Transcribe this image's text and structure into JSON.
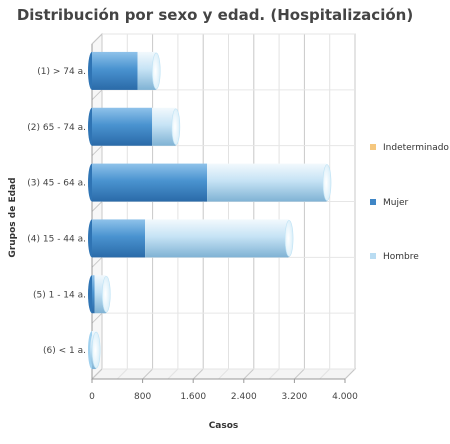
{
  "chart_data": {
    "type": "bar",
    "orientation": "horizontal",
    "stacked": true,
    "style": "3d-cylinder",
    "title": "Distribución por sexo y edad. (Hospitalización)",
    "xlabel": "Casos",
    "ylabel": "Grupos de Edad",
    "categories": [
      "(1) > 74 a.",
      "(2) 65 - 74 a.",
      "(3) 45 - 64 a.",
      "(4) 15 - 44 a.",
      "(5) 1 - 14 a.",
      "(6) < 1 a."
    ],
    "series": [
      {
        "name": "Indeterminado",
        "color": "#f5c77e",
        "values": [
          0,
          0,
          0,
          0,
          0,
          0
        ]
      },
      {
        "name": "Mujer",
        "color": "#3f86c6",
        "values": [
          720,
          950,
          1820,
          840,
          40,
          0
        ]
      },
      {
        "name": "Hombre",
        "color": "#b9dcf2",
        "values": [
          280,
          360,
          1880,
          2260,
          170,
          50
        ]
      }
    ],
    "xlim": [
      0,
      4000
    ],
    "xticks": [
      0,
      800,
      1600,
      2400,
      3200,
      4000
    ],
    "xtick_labels": [
      "0",
      "800",
      "1.600",
      "2.400",
      "3.200",
      "4.000"
    ],
    "grid": true,
    "legend_position": "right"
  }
}
